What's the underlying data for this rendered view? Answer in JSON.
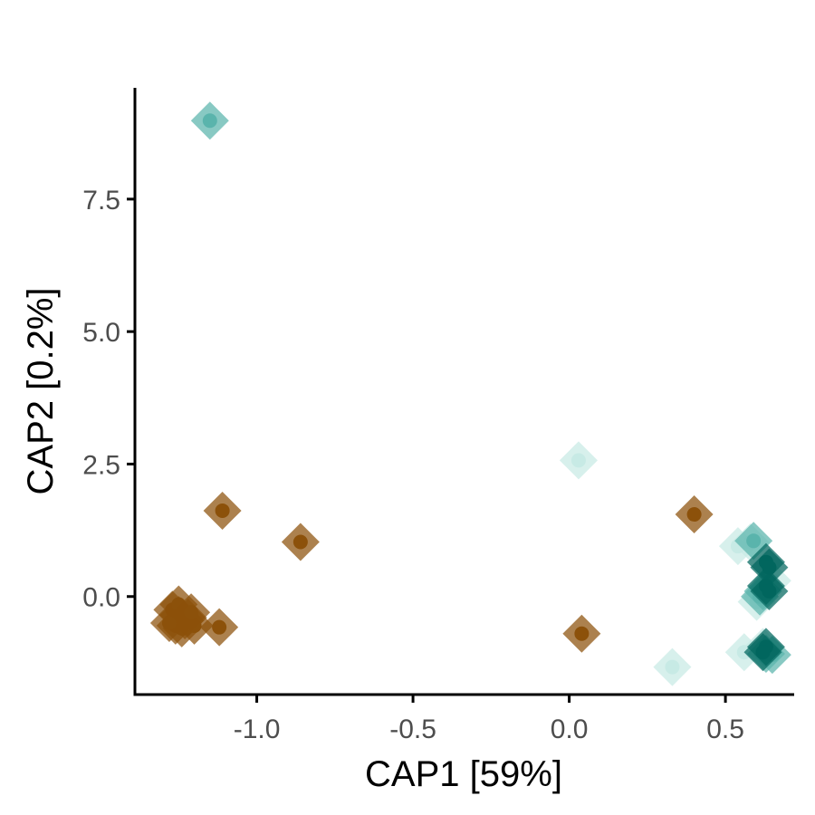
{
  "chart_data": {
    "type": "scatter",
    "xlabel": "CAP1   [59%]",
    "ylabel": "CAP2   [0.2%]",
    "xlim": [
      -1.39,
      0.72
    ],
    "ylim": [
      -1.85,
      9.6
    ],
    "x_ticks": [
      {
        "value": -1.0,
        "label": "-1.0"
      },
      {
        "value": -0.5,
        "label": "-0.5"
      },
      {
        "value": 0.0,
        "label": "0.0"
      },
      {
        "value": 0.5,
        "label": "0.5"
      }
    ],
    "y_ticks": [
      {
        "value": 0.0,
        "label": "0.0"
      },
      {
        "value": 2.5,
        "label": "2.5"
      },
      {
        "value": 5.0,
        "label": "5.0"
      },
      {
        "value": 7.5,
        "label": "7.5"
      }
    ],
    "grid": false,
    "legend": "none",
    "marker": "diamond with inner dot",
    "colors": {
      "brown": "#8c510a",
      "teal_light": "#c7eae5",
      "teal_mid": "#5ab4ac",
      "teal_dark": "#01665e"
    },
    "series": [
      {
        "color": "#8c510a",
        "points": [
          {
            "x": -1.11,
            "y": 1.62
          },
          {
            "x": -0.86,
            "y": 1.03
          },
          {
            "x": 0.4,
            "y": 1.55
          },
          {
            "x": 0.04,
            "y": -0.7
          },
          {
            "x": -1.12,
            "y": -0.58
          },
          {
            "x": -1.27,
            "y": -0.25
          },
          {
            "x": -1.25,
            "y": -0.35
          },
          {
            "x": -1.23,
            "y": -0.45
          },
          {
            "x": -1.26,
            "y": -0.55
          },
          {
            "x": -1.24,
            "y": -0.6
          },
          {
            "x": -1.22,
            "y": -0.4
          },
          {
            "x": -1.28,
            "y": -0.5
          },
          {
            "x": -1.2,
            "y": -0.55
          },
          {
            "x": -1.25,
            "y": -0.15
          },
          {
            "x": -1.21,
            "y": -0.3
          }
        ]
      },
      {
        "color": "#c7eae5",
        "points": [
          {
            "x": 0.03,
            "y": 2.57
          },
          {
            "x": 0.33,
            "y": -1.33
          },
          {
            "x": 0.54,
            "y": 0.95
          },
          {
            "x": 0.58,
            "y": 1.02
          },
          {
            "x": 0.6,
            "y": -0.1
          },
          {
            "x": 0.65,
            "y": 0.3
          },
          {
            "x": 0.56,
            "y": -1.05
          },
          {
            "x": 0.62,
            "y": -0.95
          }
        ]
      },
      {
        "color": "#5ab4ac",
        "points": [
          {
            "x": -1.15,
            "y": 8.98
          },
          {
            "x": 0.59,
            "y": 1.05
          },
          {
            "x": 0.61,
            "y": 0.0
          },
          {
            "x": 0.63,
            "y": -1.08
          },
          {
            "x": 0.62,
            "y": 0.1
          },
          {
            "x": 0.65,
            "y": -1.1
          }
        ]
      },
      {
        "color": "#01665e",
        "points": [
          {
            "x": 0.63,
            "y": 0.65
          },
          {
            "x": 0.64,
            "y": 0.55
          },
          {
            "x": 0.63,
            "y": 0.2
          },
          {
            "x": 0.64,
            "y": 0.1
          },
          {
            "x": 0.63,
            "y": -0.95
          },
          {
            "x": 0.62,
            "y": -1.05
          }
        ]
      }
    ]
  }
}
